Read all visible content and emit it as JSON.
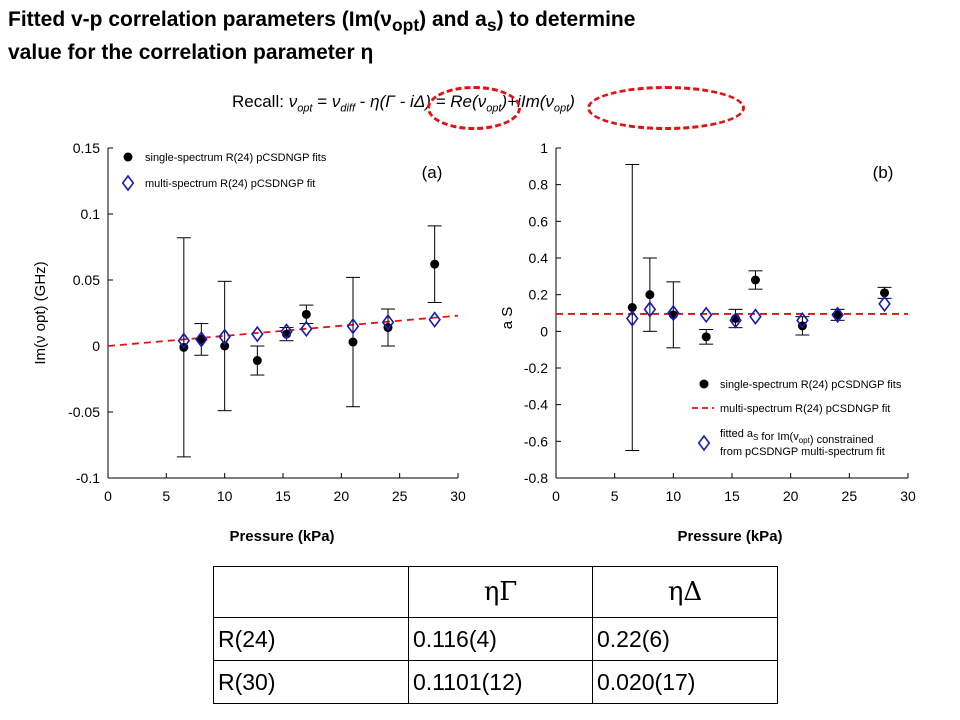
{
  "title": {
    "line1": "Fitted v-p correlation parameters (Im(ν",
    "line1_sub": "opt",
    "line1_mid": ") and a",
    "line1_sub2": "s",
    "line1_end": ") to determine",
    "line2": "value for the correlation parameter η"
  },
  "recall": {
    "prefix": "Recall: ",
    "nu": "ν",
    "opt": "opt",
    "eq1": " = ",
    "diff": "diff",
    "minus": " - ",
    "eta_part": "η(Γ - iΔ)",
    "eq2": " = Re(",
    "mid": ")+iIm(",
    "close": ")"
  },
  "annotation_color": "#e01414",
  "chart_data": [
    {
      "type": "scatter",
      "panel_label": "(a)",
      "xlabel": "Pressure (kPa)",
      "ylabel": "Im(ν opt) (GHz)",
      "xlim": [
        0,
        30
      ],
      "ylim": [
        -0.1,
        0.15
      ],
      "xticks": [
        0,
        5,
        10,
        15,
        20,
        25,
        30
      ],
      "yticks": [
        -0.1,
        -0.05,
        0,
        0.05,
        0.1,
        0.15
      ],
      "ytick_labels": [
        "-0.1",
        "-0.05",
        "0",
        "0.05",
        "0.1",
        "0.15"
      ],
      "legend_position": "top-left",
      "series": [
        {
          "name": "single-spectrum R(24) pCSDNGP fits",
          "marker": "filled-circle",
          "color": "#000000",
          "x": [
            6.5,
            8.0,
            10.0,
            12.8,
            15.3,
            17.0,
            21.0,
            24.0,
            28.0
          ],
          "y": [
            -0.001,
            0.005,
            0.0,
            -0.011,
            0.009,
            0.024,
            0.003,
            0.014,
            0.062
          ],
          "err": [
            0.083,
            0.012,
            0.049,
            0.011,
            0.005,
            0.007,
            0.049,
            0.014,
            0.029
          ]
        },
        {
          "name": "multi-spectrum R(24) pCSDNGP fit",
          "marker": "open-diamond",
          "color": "#1a1ab4",
          "line_color": "#e01414",
          "x": [
            6.5,
            8.0,
            10.0,
            12.8,
            15.3,
            17.0,
            21.0,
            24.0,
            28.0
          ],
          "y": [
            0.004,
            0.005,
            0.007,
            0.009,
            0.011,
            0.013,
            0.015,
            0.018,
            0.02
          ],
          "fit_line": {
            "x": [
              0,
              30
            ],
            "y": [
              0.0,
              0.023
            ]
          }
        }
      ]
    },
    {
      "type": "scatter",
      "panel_label": "(b)",
      "xlabel": "Pressure (kPa)",
      "ylabel": "a S",
      "xlim": [
        0,
        30
      ],
      "ylim": [
        -0.8,
        1
      ],
      "xticks": [
        0,
        5,
        10,
        15,
        20,
        25,
        30
      ],
      "yticks": [
        -0.8,
        -0.6,
        -0.4,
        -0.2,
        0,
        0.2,
        0.4,
        0.6,
        0.8,
        1
      ],
      "ytick_labels": [
        "-0.8",
        "-0.6",
        "-0.4",
        "-0.2",
        "0",
        "0.2",
        "0.4",
        "0.6",
        "0.8",
        "1"
      ],
      "legend_position": "bottom-right",
      "series": [
        {
          "name": "single-spectrum R(24) pCSDNGP fits",
          "marker": "filled-circle",
          "color": "#000000",
          "x": [
            6.5,
            8.0,
            10.0,
            12.8,
            15.3,
            17.0,
            21.0,
            24.0,
            28.0
          ],
          "y": [
            0.13,
            0.2,
            0.09,
            -0.03,
            0.07,
            0.28,
            0.03,
            0.09,
            0.21
          ],
          "err": [
            0.78,
            0.2,
            0.18,
            0.04,
            0.05,
            0.05,
            0.05,
            0.03,
            0.03
          ]
        },
        {
          "name": "multi-spectrum R(24) pCSDNGP fit",
          "marker": "dashed-line",
          "color": "#e01414",
          "fit_line": {
            "x": [
              0,
              30
            ],
            "y": [
              0.095,
              0.095
            ]
          }
        },
        {
          "name": "fitted a_S for Im(v_opt) constrained from pCSDNGP multi-spectrum fit",
          "legend_lines": [
            "fitted a",
            "S",
            " for Im(v",
            "opt",
            ") constrained",
            "from pCSDNGP multi-spectrum fit"
          ],
          "marker": "open-diamond",
          "color": "#1a1ab4",
          "x": [
            6.5,
            8.0,
            10.0,
            12.8,
            15.3,
            17.0,
            21.0,
            24.0,
            28.0
          ],
          "y": [
            0.07,
            0.12,
            0.1,
            0.09,
            0.06,
            0.08,
            0.06,
            0.09,
            0.15
          ]
        }
      ]
    }
  ],
  "table": {
    "headers": [
      "",
      "ηΓ",
      "ηΔ"
    ],
    "rows": [
      [
        "R(24)",
        "0.116(4)",
        "0.22(6)"
      ],
      [
        "R(30)",
        "0.1101(12)",
        "0.020(17)"
      ]
    ]
  }
}
